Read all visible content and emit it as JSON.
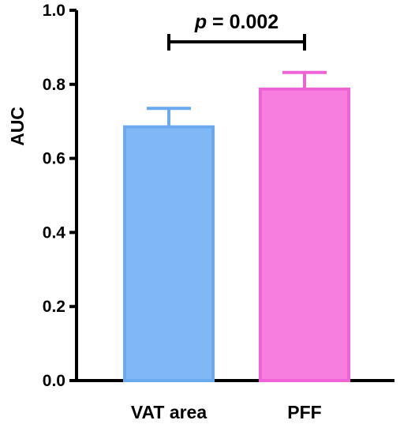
{
  "chart_data": {
    "type": "bar",
    "categories": [
      "VAT area",
      "PFF"
    ],
    "values": [
      0.685,
      0.787
    ],
    "errors": [
      0.05,
      0.045
    ],
    "ylabel": "AUC",
    "ylim": [
      0,
      1.0
    ],
    "yticks": [
      "0.0",
      "0.2",
      "0.4",
      "0.6",
      "0.8",
      "1.0"
    ],
    "bar_colors": [
      "#7fb8f5",
      "#f77ddf"
    ],
    "bar_edge_colors": [
      "#6aa9ee",
      "#ef63d6"
    ],
    "annotation": {
      "prefix": "p",
      "text": " = 0.002"
    },
    "grid": false,
    "legend": "none"
  }
}
